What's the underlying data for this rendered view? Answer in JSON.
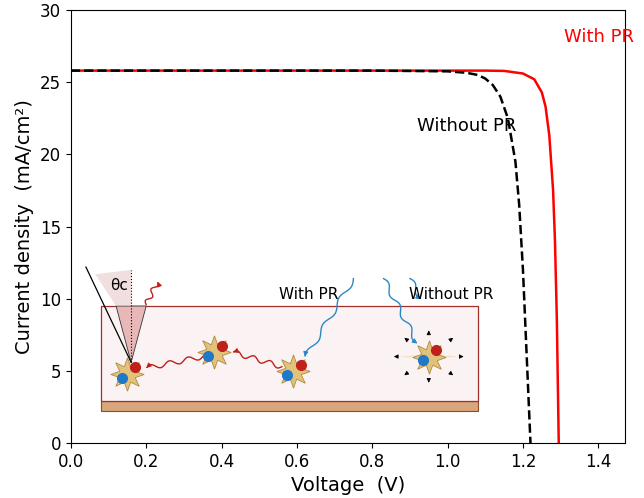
{
  "chart_data": {
    "type": "line",
    "x_label": "Voltage  (V)",
    "y_label": "Current density  (mA/cm²)",
    "xlim": [
      0.0,
      1.47
    ],
    "ylim": [
      0,
      30
    ],
    "xticks": [
      0.0,
      0.2,
      0.4,
      0.6,
      0.8,
      1.0,
      1.2,
      1.4
    ],
    "yticks": [
      0,
      5,
      10,
      15,
      20,
      25,
      30
    ],
    "grid": false,
    "series": [
      {
        "name": "With PR",
        "color": "#ff0000",
        "line_style": "solid",
        "x": [
          0.0,
          0.2,
          0.4,
          0.6,
          0.8,
          1.0,
          1.1,
          1.15,
          1.2,
          1.23,
          1.25,
          1.26,
          1.27,
          1.28,
          1.285,
          1.29,
          1.295
        ],
        "values": [
          25.8,
          25.8,
          25.8,
          25.8,
          25.8,
          25.8,
          25.8,
          25.78,
          25.6,
          25.2,
          24.3,
          23.3,
          21.3,
          17.5,
          14.0,
          8.5,
          0.0
        ]
      },
      {
        "name": "Without PR",
        "color": "#000000",
        "line_style": "dashed",
        "x": [
          0.0,
          0.2,
          0.4,
          0.6,
          0.8,
          1.0,
          1.05,
          1.08,
          1.1,
          1.12,
          1.14,
          1.16,
          1.18,
          1.19,
          1.2,
          1.21,
          1.22
        ],
        "values": [
          25.8,
          25.8,
          25.8,
          25.8,
          25.8,
          25.75,
          25.65,
          25.5,
          25.25,
          24.8,
          24.0,
          22.5,
          19.5,
          16.5,
          12.0,
          6.0,
          0.0
        ]
      }
    ],
    "inset": {
      "labels": [
        "With PR",
        "Without PR"
      ],
      "angle_label": "θc"
    }
  }
}
